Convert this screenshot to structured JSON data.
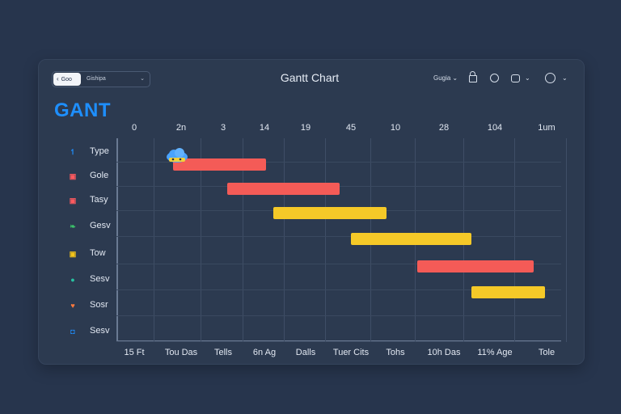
{
  "header": {
    "back_label": "Goo",
    "crumb_text": "Gishipa",
    "title": "Gantt Chart",
    "select_label": "Gugia"
  },
  "brand": {
    "title": "GANT"
  },
  "timeline": {
    "top_labels": [
      "0",
      "2n",
      "3",
      "14",
      "19",
      "45",
      "10",
      "28",
      "104",
      "1um"
    ],
    "bottom_labels": [
      "15 Ft",
      "Tou Das",
      "Tells",
      "6n Ag",
      "Dalls",
      "Tuer Cits",
      "Tohs",
      "10h Das",
      "11% Age",
      "Tole"
    ]
  },
  "rows": [
    {
      "label": "Type",
      "icon": "pin-icon",
      "color": "#1e8fff"
    },
    {
      "label": "Gole",
      "icon": "square-icon",
      "color": "#ff5a5f"
    },
    {
      "label": "Tasy",
      "icon": "square-icon",
      "color": "#ff5a5f"
    },
    {
      "label": "Gesv",
      "icon": "leaf-icon",
      "color": "#3cc46a"
    },
    {
      "label": "Tow",
      "icon": "square-icon",
      "color": "#f5c518"
    },
    {
      "label": "Sesv",
      "icon": "circle-icon",
      "color": "#27c3a1"
    },
    {
      "label": "Sosr",
      "icon": "heart-icon",
      "color": "#ff7a3d"
    },
    {
      "label": "Sesv",
      "icon": "chat-icon",
      "color": "#1e8fff"
    }
  ],
  "tasks": [
    {
      "row": 0,
      "start": 0.07,
      "end": 0.31,
      "color": "#f45b57"
    },
    {
      "row": 1,
      "start": 0.21,
      "end": 0.5,
      "color": "#f45b57"
    },
    {
      "row": 2,
      "start": 0.33,
      "end": 0.62,
      "color": "#f5c928"
    },
    {
      "row": 3,
      "start": 0.53,
      "end": 0.84,
      "color": "#f5c928"
    },
    {
      "row": 4,
      "start": 0.7,
      "end": 1.0,
      "color": "#f45b57"
    },
    {
      "row": 5,
      "start": 0.84,
      "end": 1.1,
      "color": "#f5c928"
    }
  ],
  "colors": {
    "background": "#27354d",
    "panel": "#2c3a50",
    "accent": "#1e8fff"
  }
}
